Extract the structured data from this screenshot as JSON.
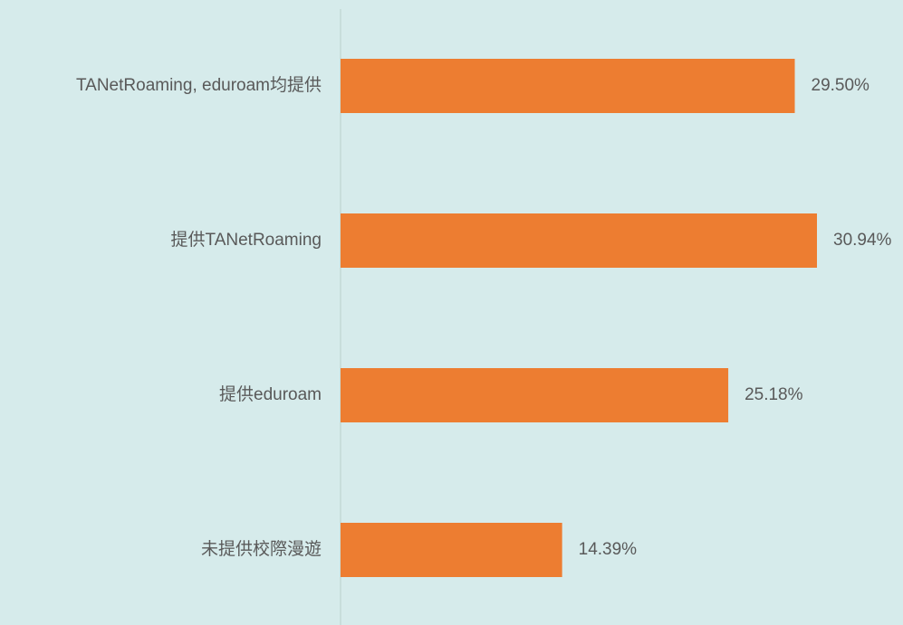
{
  "chart_data": {
    "type": "bar",
    "orientation": "horizontal",
    "categories": [
      "TANetRoaming, eduroam均提供",
      "提供TANetRoaming",
      "提供eduroam",
      "未提供校際漫遊"
    ],
    "values": [
      29.5,
      30.94,
      25.18,
      14.39
    ],
    "value_labels": [
      "29.50%",
      "30.94%",
      "25.18%",
      "14.39%"
    ],
    "color": "#ed7d31"
  }
}
